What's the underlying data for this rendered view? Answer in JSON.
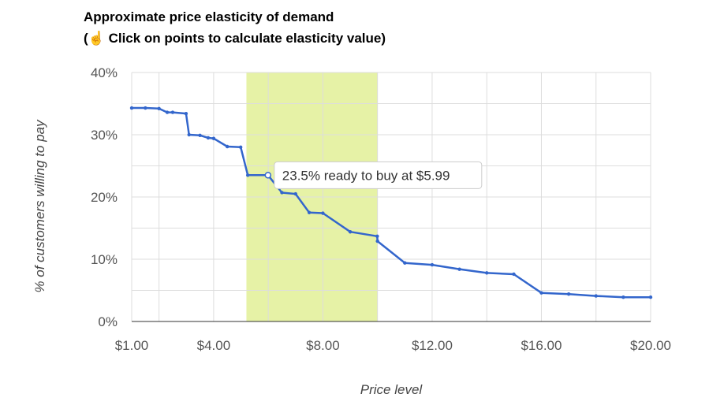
{
  "title": {
    "line1": "Approximate price elasticity of demand",
    "line2_prefix": "(",
    "line2_icon": "pointing-hand-icon",
    "line2_text": " Click on points to calculate elasticity value)"
  },
  "colors": {
    "line": "#3366cc",
    "highlight": "#e6f2a6",
    "grid": "#dddddd",
    "axis": "#333333"
  },
  "chart_data": {
    "type": "line",
    "xlabel": "Price level",
    "ylabel": "% of customers willing to pay",
    "xlim": [
      1,
      20
    ],
    "ylim": [
      0,
      40
    ],
    "x_ticks": [
      {
        "value": 1,
        "label": "$1.00"
      },
      {
        "value": 4,
        "label": "$4.00"
      },
      {
        "value": 8,
        "label": "$8.00"
      },
      {
        "value": 12,
        "label": "$12.00"
      },
      {
        "value": 16,
        "label": "$16.00"
      },
      {
        "value": 20,
        "label": "$20.00"
      }
    ],
    "y_ticks": [
      {
        "value": 0,
        "label": "0%"
      },
      {
        "value": 10,
        "label": "10%"
      },
      {
        "value": 20,
        "label": "20%"
      },
      {
        "value": 30,
        "label": "30%"
      },
      {
        "value": 40,
        "label": "40%"
      }
    ],
    "grid": true,
    "highlight_range": [
      5.2,
      10
    ],
    "series": [
      {
        "points": [
          [
            1.0,
            34.3
          ],
          [
            1.5,
            34.3
          ],
          [
            2.0,
            34.2
          ],
          [
            2.3,
            33.6
          ],
          [
            2.5,
            33.6
          ],
          [
            2.99,
            33.4
          ],
          [
            3.1,
            30.0
          ],
          [
            3.5,
            29.9
          ],
          [
            3.8,
            29.5
          ],
          [
            4.0,
            29.4
          ],
          [
            4.5,
            28.1
          ],
          [
            4.99,
            28.0
          ],
          [
            5.25,
            23.5
          ],
          [
            5.99,
            23.5
          ],
          [
            6.5,
            20.7
          ],
          [
            7.0,
            20.5
          ],
          [
            7.5,
            17.5
          ],
          [
            8.0,
            17.4
          ],
          [
            9.0,
            14.4
          ],
          [
            9.99,
            13.7
          ],
          [
            10.0,
            12.9
          ],
          [
            11.0,
            9.4
          ],
          [
            12.0,
            9.1
          ],
          [
            13.0,
            8.4
          ],
          [
            14.0,
            7.8
          ],
          [
            14.99,
            7.6
          ],
          [
            16.0,
            4.6
          ],
          [
            17.0,
            4.4
          ],
          [
            18.0,
            4.1
          ],
          [
            19.0,
            3.9
          ],
          [
            20.0,
            3.9
          ]
        ]
      }
    ],
    "selected_point_index": 13,
    "tooltip": "23.5% ready to buy at $5.99"
  }
}
